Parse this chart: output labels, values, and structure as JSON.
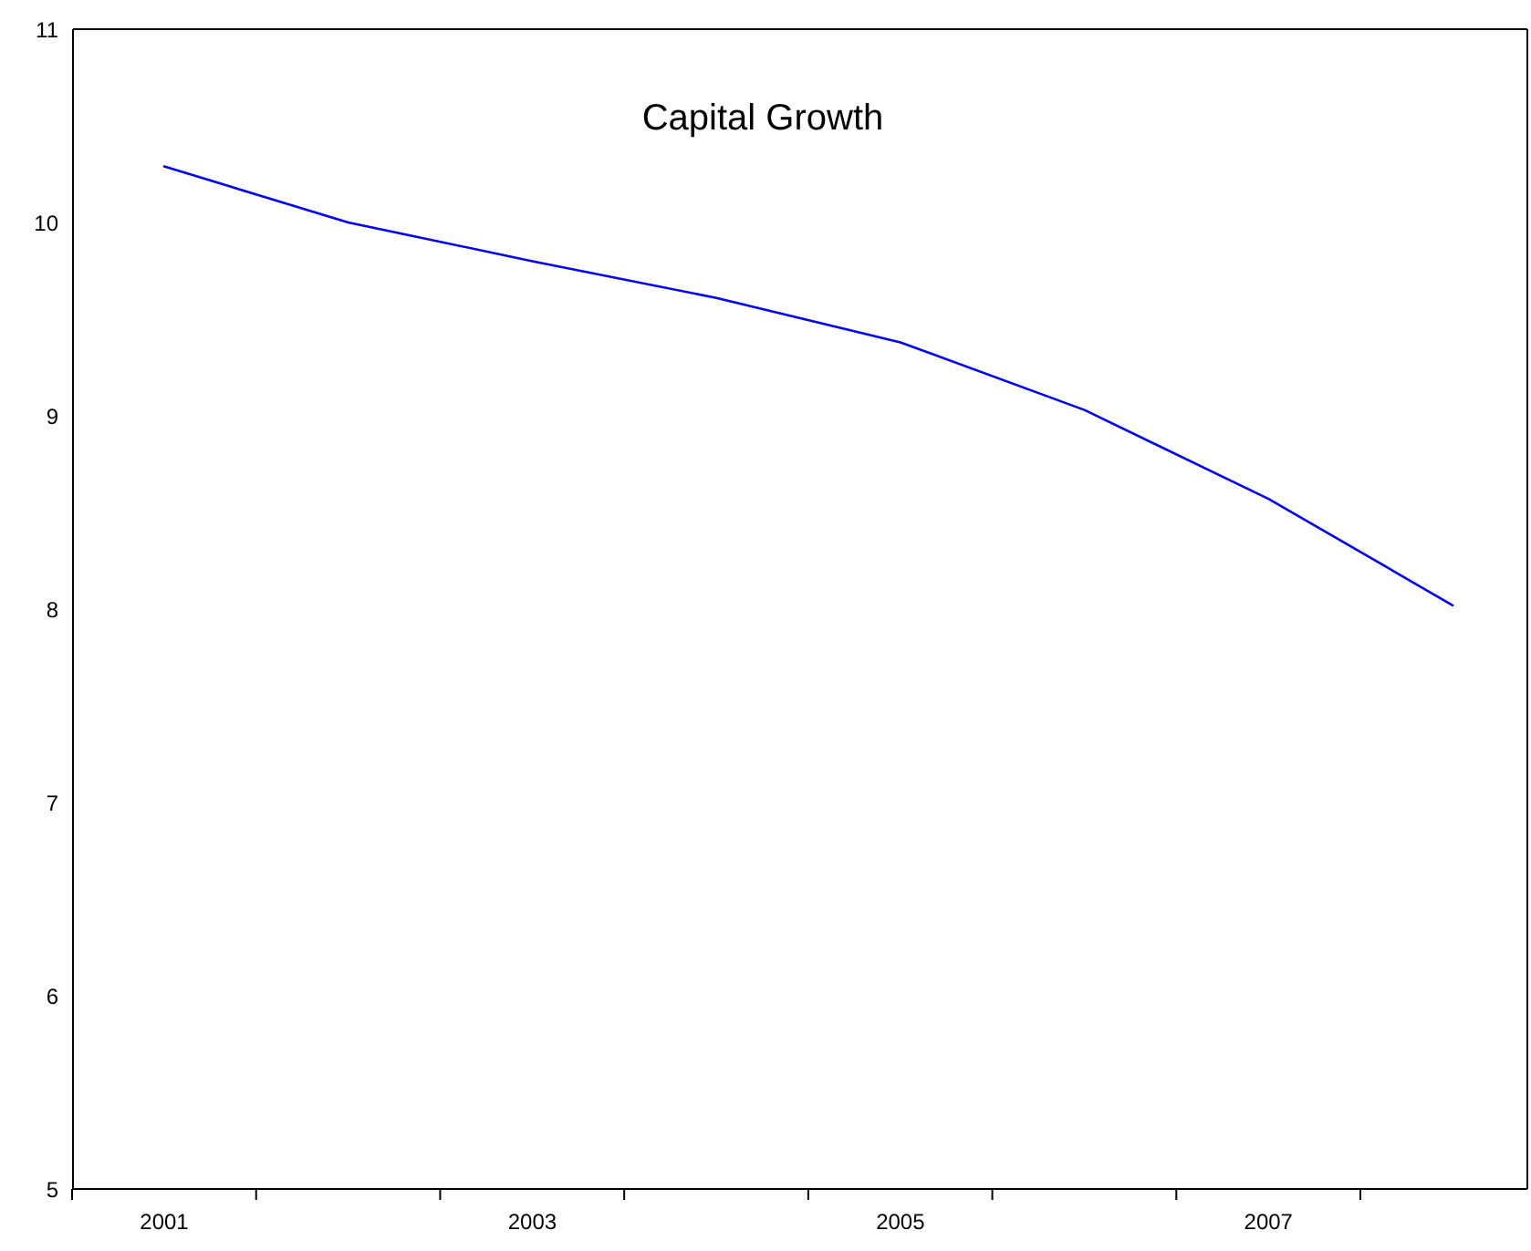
{
  "chart_data": {
    "type": "line",
    "title": "Capital Growth",
    "categories": [
      "2001",
      null,
      "2003",
      null,
      "2005",
      null,
      "2007",
      null
    ],
    "series": [
      {
        "color": "#0000ff",
        "values": [
          10.29,
          10.0,
          9.8,
          9.61,
          9.38,
          9.03,
          8.57,
          8.02
        ]
      }
    ],
    "ylim": [
      5,
      11
    ],
    "yticks": [
      5,
      6,
      7,
      8,
      9,
      10,
      11
    ],
    "marker": "none",
    "line_style": "solid"
  }
}
